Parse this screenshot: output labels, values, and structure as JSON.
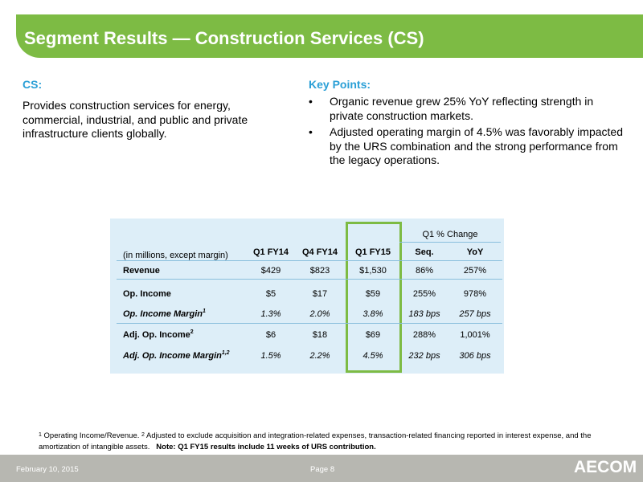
{
  "title": "Segment Results — Construction Services (CS)",
  "left": {
    "heading": "CS:",
    "body": "Provides construction services for energy, commercial, industrial, and public and private infrastructure clients globally."
  },
  "right": {
    "heading": "Key Points:",
    "bullets": [
      "Organic revenue grew 25% YoY reflecting strength in private construction markets.",
      "Adjusted operating margin of 4.5% was favorably impacted by the URS combination and the strong performance from the legacy operations."
    ]
  },
  "table": {
    "group_header": "Q1 % Change",
    "unit_label": "(in millions, except margin)",
    "columns": [
      "Q1 FY14",
      "Q4 FY14",
      "Q1 FY15",
      "Seq.",
      "YoY"
    ],
    "rows": [
      {
        "label": "Revenue",
        "sup": "",
        "values": [
          "$429",
          "$823",
          "$1,530",
          "86%",
          "257%"
        ]
      },
      {
        "label": "Op. Income",
        "sup": "",
        "values": [
          "$5",
          "$17",
          "$59",
          "255%",
          "978%"
        ]
      },
      {
        "label": "Op. Income Margin",
        "sup": "1",
        "values": [
          "1.3%",
          "2.0%",
          "3.8%",
          "183 bps",
          "257 bps"
        ]
      },
      {
        "label": "Adj. Op. Income",
        "sup": "2",
        "values": [
          "$6",
          "$18",
          "$69",
          "288%",
          "1,001%"
        ]
      },
      {
        "label": "Adj. Op. Income Margin",
        "sup": "1,2",
        "values": [
          "1.5%",
          "2.2%",
          "4.5%",
          "232 bps",
          "306 bps"
        ]
      }
    ]
  },
  "footnote": {
    "sup1": "1",
    "text1": " Operating Income/Revenue. ",
    "sup2": "2",
    "text2": " Adjusted to exclude acquisition and integration-related expenses, transaction-related financing reported in interest expense, and the amortization of intangible assets.",
    "note": "Note: Q1 FY15 results include 11 weeks of URS contribution."
  },
  "footer": {
    "date": "February 10, 2015",
    "page": "Page 8",
    "logo": "AECOM"
  },
  "colors": {
    "accent_green": "#7dbb44",
    "heading_blue": "#2a9fd6",
    "table_bg": "#ddeef8",
    "footer_gray": "#b7b7b1"
  }
}
